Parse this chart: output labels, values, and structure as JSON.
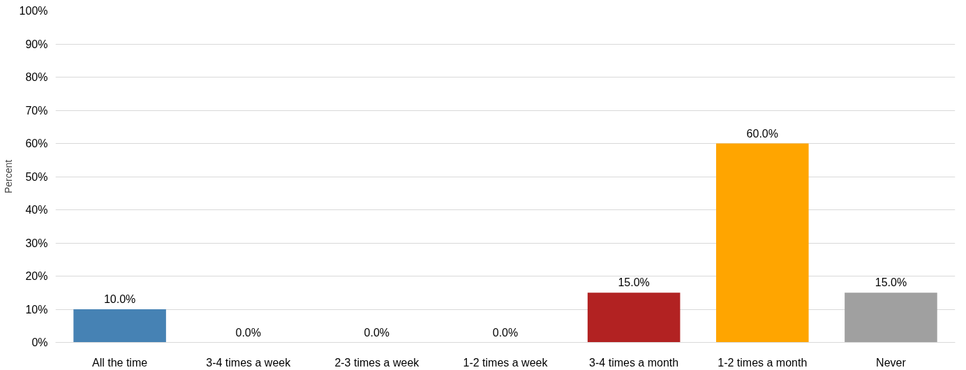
{
  "chart_data": {
    "type": "bar",
    "ylabel": "Percent",
    "categories": [
      "All the time",
      "3-4 times a week",
      "2-3 times a week",
      "1-2 times a week",
      "3-4 times a month",
      "1-2 times a month",
      "Never"
    ],
    "values": [
      10.0,
      0.0,
      0.0,
      0.0,
      15.0,
      60.0,
      15.0
    ],
    "colors": [
      "#4682b4",
      null,
      null,
      null,
      "#b22222",
      "#ffa500",
      "#a0a0a0"
    ],
    "value_labels": [
      "10.0%",
      "0.0%",
      "0.0%",
      "0.0%",
      "15.0%",
      "60.0%",
      "15.0%"
    ],
    "ylim": [
      0,
      100
    ],
    "yticks": [
      {
        "value": 0,
        "label": "0%"
      },
      {
        "value": 10,
        "label": "10%"
      },
      {
        "value": 20,
        "label": "20%"
      },
      {
        "value": 30,
        "label": "30%"
      },
      {
        "value": 40,
        "label": "40%"
      },
      {
        "value": 50,
        "label": "50%"
      },
      {
        "value": 60,
        "label": "60%"
      },
      {
        "value": 70,
        "label": "70%"
      },
      {
        "value": 80,
        "label": "80%"
      },
      {
        "value": 90,
        "label": "90%"
      },
      {
        "value": 100,
        "label": "100%"
      }
    ],
    "grid": "y"
  }
}
